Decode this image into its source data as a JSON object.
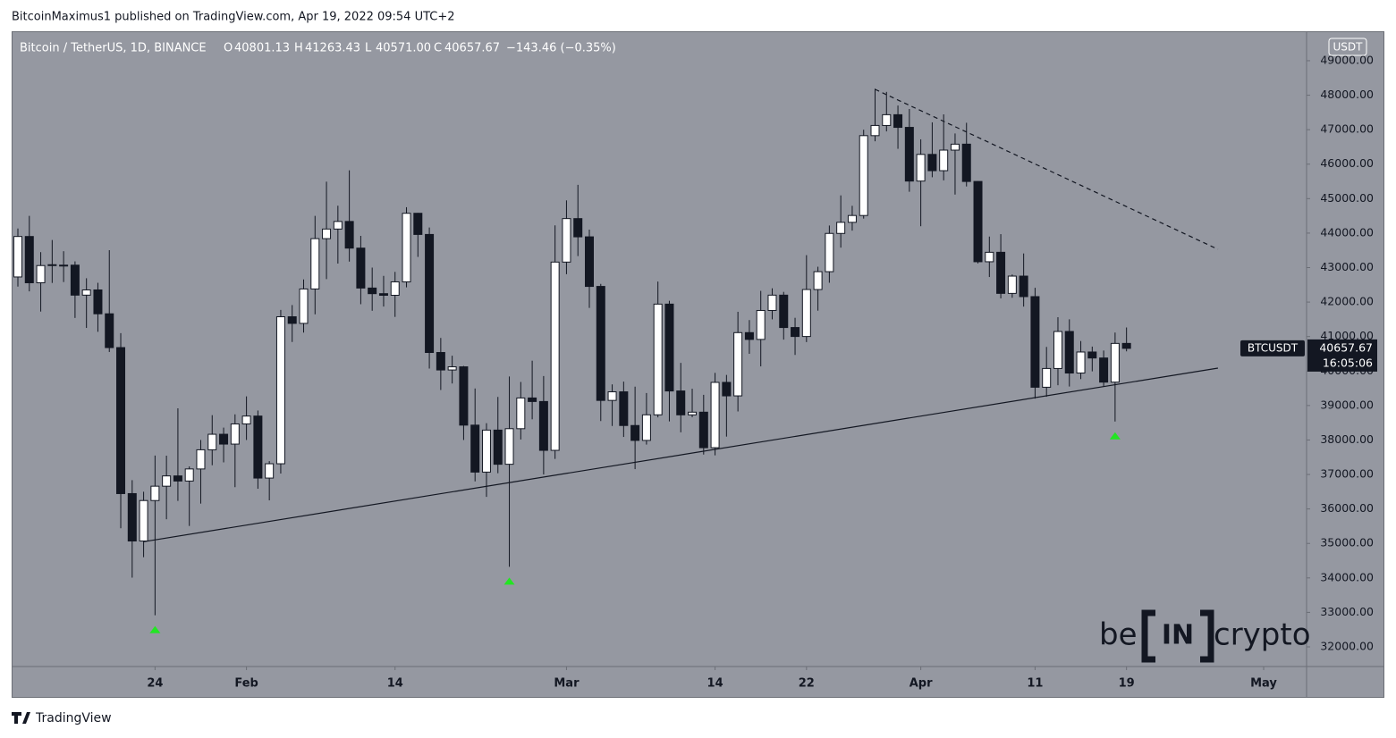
{
  "chart_data": {
    "type": "candlestick",
    "publisher": "BitcoinMaximus1 published on TradingView.com, Apr 19, 2022 09:54 UTC+2",
    "symbol": "Bitcoin / TetherUS, 1D, BINANCE",
    "ohlc_legend": [
      {
        "label": "O",
        "value": "40801.13"
      },
      {
        "label": "H",
        "value": "41263.43"
      },
      {
        "label": "L",
        "value": "40571.00"
      },
      {
        "label": "C",
        "value": "40657.67"
      }
    ],
    "change": "−143.46 (−0.35%)",
    "currency": "USDT",
    "ticker": "BTCUSDT",
    "countdown": "16:05:06",
    "footer": "TradingView",
    "watermark": [
      "be",
      "IN",
      "crypto"
    ],
    "x": [
      "Jan 12",
      "Jan 13",
      "Jan 14",
      "Jan 15",
      "Jan 16",
      "Jan 17",
      "Jan 18",
      "Jan 19",
      "Jan 20",
      "Jan 21",
      "Jan 22",
      "Jan 23",
      "Jan 24",
      "Jan 25",
      "Jan 26",
      "Jan 27",
      "Jan 28",
      "Jan 29",
      "Jan 30",
      "Jan 31",
      "Feb 1",
      "Feb 2",
      "Feb 3",
      "Feb 4",
      "Feb 5",
      "Feb 6",
      "Feb 7",
      "Feb 8",
      "Feb 9",
      "Feb 10",
      "Feb 11",
      "Feb 12",
      "Feb 13",
      "Feb 14",
      "Feb 15",
      "Feb 16",
      "Feb 17",
      "Feb 18",
      "Feb 19",
      "Feb 20",
      "Feb 21",
      "Feb 22",
      "Feb 23",
      "Feb 24",
      "Feb 25",
      "Feb 26",
      "Feb 27",
      "Feb 28",
      "Mar 1",
      "Mar 2",
      "Mar 3",
      "Mar 4",
      "Mar 5",
      "Mar 6",
      "Mar 7",
      "Mar 8",
      "Mar 9",
      "Mar 10",
      "Mar 11",
      "Mar 12",
      "Mar 13",
      "Mar 14",
      "Mar 15",
      "Mar 16",
      "Mar 17",
      "Mar 18",
      "Mar 19",
      "Mar 20",
      "Mar 21",
      "Mar 22",
      "Mar 23",
      "Mar 24",
      "Mar 25",
      "Mar 26",
      "Mar 27",
      "Mar 28",
      "Mar 29",
      "Mar 30",
      "Mar 31",
      "Apr 1",
      "Apr 2",
      "Apr 3",
      "Apr 4",
      "Apr 5",
      "Apr 6",
      "Apr 7",
      "Apr 8",
      "Apr 9",
      "Apr 10",
      "Apr 11",
      "Apr 12",
      "Apr 13",
      "Apr 14",
      "Apr 15",
      "Apr 16",
      "Apr 17",
      "Apr 18",
      "Apr 19"
    ],
    "open": [
      42729,
      43902,
      42560,
      43059,
      43071,
      43071,
      42201,
      42352,
      41660,
      40680,
      36445,
      35071,
      36244,
      36660,
      36958,
      36810,
      37160,
      37716,
      38166,
      37881,
      38466,
      38694,
      36896,
      37311,
      41574,
      41382,
      42380,
      43840,
      44118,
      44338,
      43565,
      42407,
      42244,
      42197,
      42586,
      44575,
      43961,
      40538,
      40031,
      40122,
      38431,
      37069,
      38287,
      37296,
      38328,
      39219,
      39116,
      37700,
      43160,
      44421,
      43892,
      42454,
      39148,
      39397,
      38420,
      37988,
      38730,
      41941,
      39422,
      38729,
      38807,
      37777,
      39671,
      39280,
      41114,
      40917,
      41757,
      42201,
      41262,
      41002,
      42364,
      42882,
      43991,
      44313,
      44511,
      46827,
      47122,
      47434,
      47067,
      45510,
      46283,
      45811,
      46407,
      46580,
      45498,
      43170,
      43444,
      42252,
      42753,
      42158,
      39530,
      40074,
      41147,
      39942,
      40552,
      40378,
      39678,
      40801.13
    ],
    "high": [
      44135,
      44500,
      43448,
      43800,
      43475,
      43180,
      42691,
      42559,
      43505,
      41100,
      36835,
      36499,
      37550,
      37545,
      38919,
      37234,
      38000,
      38720,
      38359,
      38744,
      39265,
      38855,
      37387,
      41772,
      41913,
      42656,
      44500,
      45492,
      44795,
      45821,
      43920,
      43000,
      42760,
      42876,
      44751,
      44585,
      44164,
      40960,
      40444,
      40148,
      39494,
      38488,
      39249,
      39843,
      39683,
      40300,
      39855,
      44225,
      44949,
      45400,
      44102,
      42527,
      39613,
      39693,
      39547,
      39362,
      42594,
      42039,
      40236,
      39486,
      39310,
      39947,
      39887,
      41718,
      41478,
      42325,
      42400,
      42296,
      41544,
      43361,
      43025,
      44220,
      45094,
      44792,
      46999,
      48190,
      48096,
      47700,
      47600,
      46720,
      47213,
      47444,
      46890,
      47200,
      45507,
      43900,
      43970,
      42800,
      43410,
      42414,
      40699,
      41561,
      41500,
      40870,
      40709,
      40595,
      41116,
      41263.43
    ],
    "low": [
      42450,
      42311,
      41725,
      42555,
      42581,
      41540,
      41250,
      41138,
      40553,
      35440,
      34008,
      34601,
      32917,
      35701,
      36234,
      35507,
      36155,
      37268,
      37351,
      36632,
      38000,
      36586,
      36250,
      37026,
      40843,
      41116,
      41645,
      42666,
      43117,
      43174,
      41938,
      41748,
      41870,
      41570,
      42428,
      43310,
      40073,
      39450,
      39639,
      38000,
      36800,
      36350,
      37036,
      34322,
      38014,
      38600,
      37000,
      37450,
      42809,
      43334,
      41832,
      38550,
      38407,
      38088,
      37155,
      37867,
      38657,
      38539,
      38223,
      38660,
      37578,
      37555,
      38098,
      38828,
      40500,
      40135,
      41499,
      40911,
      40467,
      40840,
      41751,
      42560,
      43579,
      44072,
      44421,
      46663,
      46950,
      46445,
      45200,
      44200,
      45620,
      45530,
      45118,
      45353,
      43121,
      42727,
      42107,
      42125,
      41868,
      39200,
      39254,
      39588,
      39551,
      39766,
      39991,
      39546,
      38536,
      40571
    ],
    "close": [
      43902,
      42560,
      43059,
      43084,
      43071,
      42201,
      42352,
      41660,
      40680,
      36445,
      35071,
      36244,
      36660,
      36958,
      36810,
      37160,
      37716,
      38166,
      37881,
      38466,
      38694,
      36896,
      37311,
      41574,
      41382,
      42380,
      43840,
      44118,
      44338,
      43565,
      42407,
      42244,
      42197,
      42586,
      44575,
      43961,
      40538,
      40031,
      40122,
      38431,
      37069,
      38287,
      37296,
      38328,
      39219,
      39116,
      37700,
      43160,
      44421,
      43892,
      42454,
      39148,
      39397,
      38420,
      37988,
      38730,
      41941,
      39422,
      38729,
      38807,
      37777,
      39671,
      39280,
      41114,
      40917,
      41757,
      42201,
      41262,
      41002,
      42364,
      42882,
      43991,
      44313,
      44511,
      46827,
      47122,
      47434,
      47067,
      45510,
      46283,
      45811,
      46407,
      46580,
      45498,
      43170,
      43444,
      42252,
      42753,
      42158,
      39530,
      40074,
      41147,
      39942,
      40552,
      40378,
      39678,
      40801.13,
      40657.67
    ],
    "up_color": "#ffffff",
    "down_color": "#131722",
    "marker_color": "#22e622",
    "markers": [
      "Jan 24",
      "Feb 24",
      "Apr 18"
    ],
    "trendlines": [
      {
        "style": "solid",
        "from": [
          "Jan 23",
          35050
        ],
        "to": [
          "Apr 27",
          40085
        ]
      },
      {
        "style": "dashed",
        "from": [
          "Mar 28",
          48170
        ],
        "to": [
          "Apr 27",
          43531
        ]
      }
    ],
    "ylim": [
      31430,
      49854
    ],
    "yticks": [
      {
        "value": 32000,
        "label": "32000.00"
      },
      {
        "value": 33000,
        "label": "33000.00"
      },
      {
        "value": 34000,
        "label": "34000.00"
      },
      {
        "value": 35000,
        "label": "35000.00"
      },
      {
        "value": 36000,
        "label": "36000.00"
      },
      {
        "value": 37000,
        "label": "37000.00"
      },
      {
        "value": 38000,
        "label": "38000.00"
      },
      {
        "value": 39000,
        "label": "39000.00"
      },
      {
        "value": 40000,
        "label": "40000.00"
      },
      {
        "value": 41000,
        "label": "41000.00"
      },
      {
        "value": 42000,
        "label": "42000.00"
      },
      {
        "value": 43000,
        "label": "43000.00"
      },
      {
        "value": 44000,
        "label": "44000.00"
      },
      {
        "value": 45000,
        "label": "45000.00"
      },
      {
        "value": 46000,
        "label": "46000.00"
      },
      {
        "value": 47000,
        "label": "47000.00"
      },
      {
        "value": 48000,
        "label": "48000.00"
      },
      {
        "value": 49000,
        "label": "49000.00"
      }
    ],
    "xticks": [
      {
        "value": "Jan 24",
        "label": "24"
      },
      {
        "value": "Feb 1",
        "label": "Feb"
      },
      {
        "value": "Feb 14",
        "label": "14"
      },
      {
        "value": "Mar 1",
        "label": "Mar"
      },
      {
        "value": "Mar 14",
        "label": "14"
      },
      {
        "value": "Mar 22",
        "label": "22"
      },
      {
        "value": "Apr 1",
        "label": "Apr"
      },
      {
        "value": "Apr 11",
        "label": "11"
      },
      {
        "value": "Apr 19",
        "label": "19"
      },
      {
        "value": "May 1",
        "label": "May"
      }
    ]
  }
}
